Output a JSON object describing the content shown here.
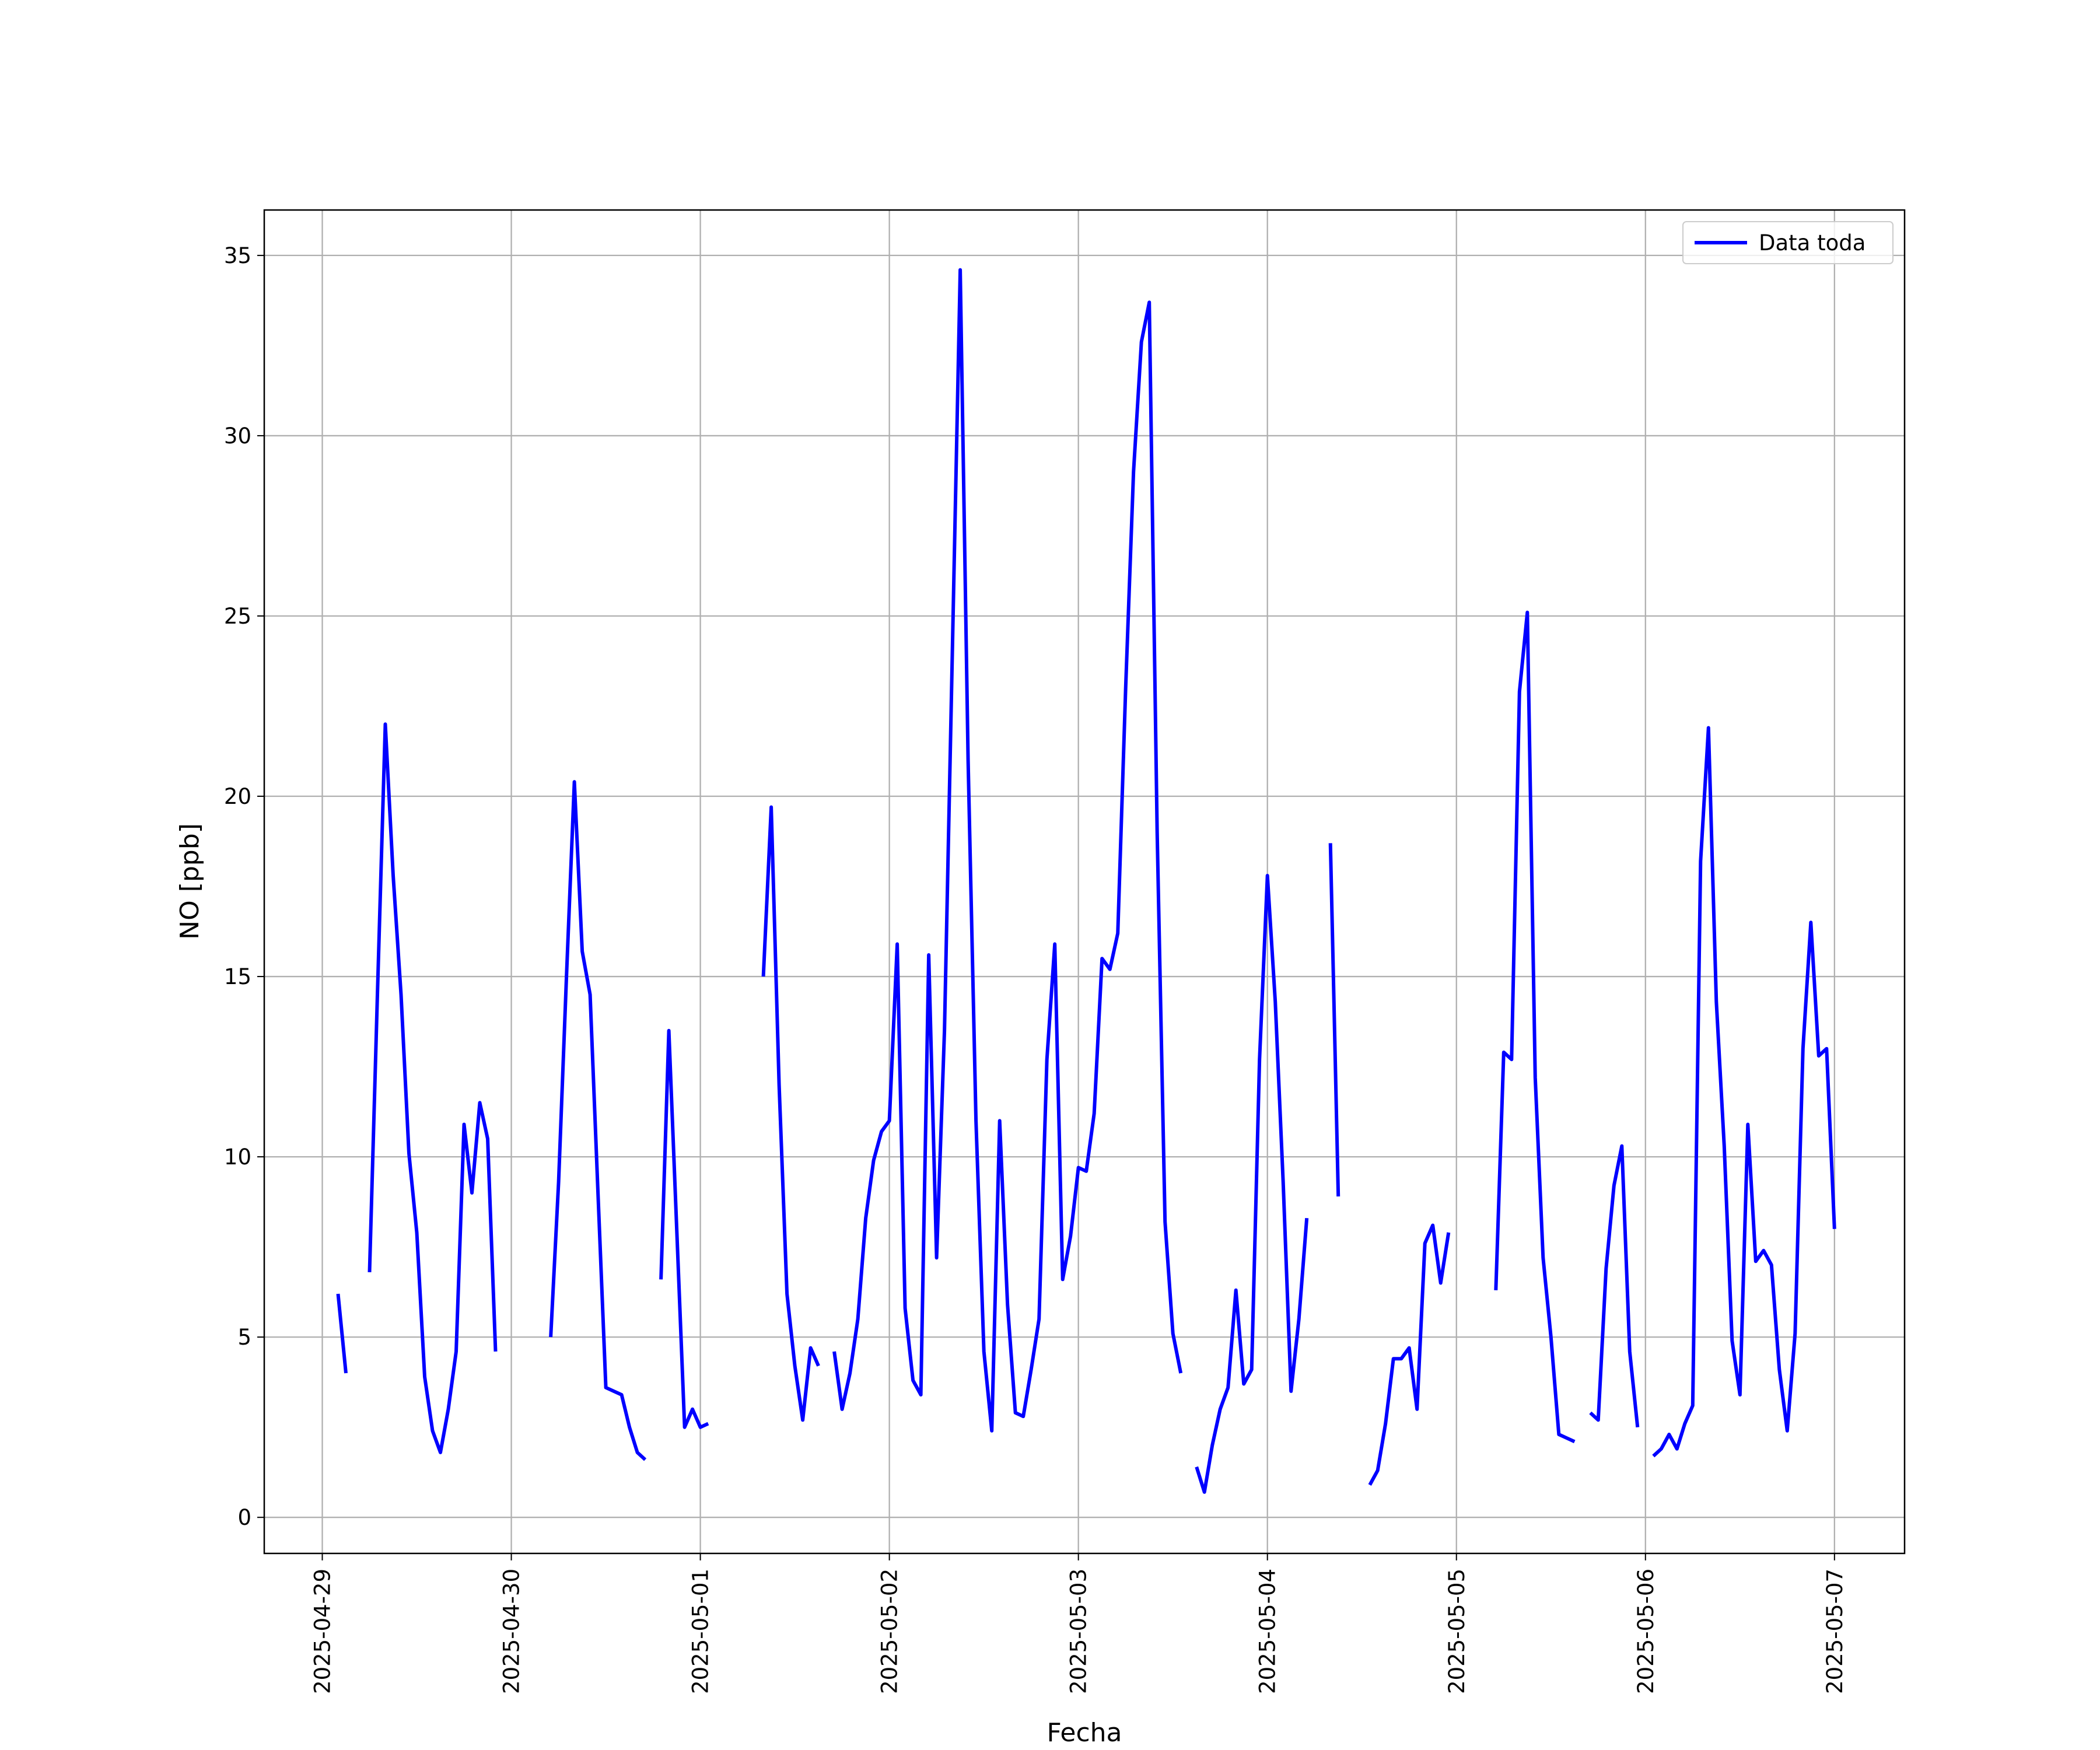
{
  "chart_data": {
    "type": "line",
    "x_label": "Fecha",
    "y_label": "NO [ppb]",
    "x": [
      2,
      3,
      4,
      5,
      6,
      7,
      8,
      9,
      10,
      11,
      12,
      13,
      14,
      15,
      16,
      17,
      18,
      19,
      20,
      21,
      22,
      23,
      24,
      25,
      26,
      27,
      28,
      29,
      30,
      31,
      32,
      33,
      34,
      35,
      36,
      37,
      38,
      39,
      40,
      41,
      42,
      43,
      44,
      45,
      46,
      47,
      48,
      49,
      50,
      51,
      52,
      53,
      54,
      55,
      56,
      57,
      58,
      59,
      60,
      61,
      62,
      63,
      64,
      65,
      66,
      67,
      68,
      69,
      70,
      71,
      72,
      73,
      74,
      75,
      76,
      77,
      78,
      79,
      80,
      81,
      82,
      83,
      84,
      85,
      86,
      87,
      88,
      89,
      90,
      91,
      92,
      93,
      94,
      95,
      96,
      97,
      98,
      99,
      100,
      101,
      102,
      103,
      104,
      105,
      106,
      107,
      108,
      109,
      110,
      111,
      112,
      113,
      114,
      115,
      116,
      117,
      118,
      119,
      120,
      121,
      122,
      123,
      124,
      125,
      126,
      127,
      128,
      129,
      130,
      131,
      132,
      133,
      134,
      135,
      136,
      137,
      138,
      139,
      140,
      141,
      142,
      143,
      144,
      145,
      146,
      147,
      148,
      149,
      150,
      151,
      152,
      153,
      154,
      155,
      156,
      157,
      158,
      159,
      160,
      161,
      162,
      163,
      164,
      165,
      166,
      167,
      168,
      169,
      170,
      171,
      172,
      173,
      174,
      175,
      176,
      177,
      178,
      179,
      180,
      181,
      182,
      183,
      184,
      185,
      186,
      187,
      188,
      189,
      190,
      191,
      192
    ],
    "series": [
      {
        "name": "Data toda",
        "color": "#0000ff",
        "values": [
          6.2,
          4.0,
          null,
          null,
          6.8,
          14.5,
          22,
          17.8,
          14.5,
          10.1,
          7.9,
          3.9,
          2.4,
          1.8,
          3.0,
          4.6,
          10.9,
          9.0,
          11.5,
          10.5,
          4.6,
          null,
          null,
          null,
          null,
          null,
          null,
          5.0,
          9.3,
          15,
          20.4,
          15.7,
          14.5,
          9,
          3.6,
          3.5,
          3.4,
          2.5,
          1.8,
          1.6,
          null,
          6.6,
          13.5,
          8,
          2.5,
          3.0,
          2.5,
          2.6,
          null,
          null,
          null,
          null,
          null,
          null,
          15,
          19.7,
          12,
          6.2,
          4.2,
          2.7,
          4.7,
          4.2,
          null,
          4.6,
          3.0,
          4.0,
          5.5,
          8.3,
          9.9,
          10.7,
          11.0,
          15.9,
          5.8,
          3.8,
          3.4,
          15.6,
          7.2,
          13.5,
          24,
          34.6,
          21,
          11,
          4.6,
          2.4,
          11,
          5.9,
          2.9,
          2.8,
          4.1,
          5.5,
          12.7,
          15.9,
          6.6,
          7.8,
          9.7,
          9.6,
          11.2,
          15.5,
          15.2,
          16.2,
          23,
          29,
          32.6,
          33.7,
          19,
          8.2,
          5.1,
          4.0,
          null,
          1.4,
          0.7,
          2.0,
          3.0,
          3.6,
          6.3,
          3.7,
          4.1,
          12.7,
          17.8,
          14.3,
          9.3,
          3.5,
          5.5,
          8.3,
          null,
          null,
          18.7,
          8.9,
          null,
          null,
          null,
          0.9,
          1.3,
          2.6,
          4.4,
          4.4,
          4.7,
          3.0,
          7.6,
          8.1,
          6.5,
          7.9,
          null,
          null,
          null,
          null,
          null,
          6.3,
          12.9,
          12.7,
          22.9,
          25.1,
          12.2,
          7.2,
          5.0,
          2.3,
          2.2,
          2.1,
          null,
          2.9,
          2.7,
          6.9,
          9.2,
          10.3,
          4.6,
          2.5,
          null,
          1.7,
          1.9,
          2.3,
          1.9,
          2.6,
          3.1,
          18.2,
          21.9,
          14.3,
          10.3,
          4.9,
          3.4,
          10.9,
          7.1,
          7.4,
          7.0,
          4.1,
          2.4,
          5.1,
          13,
          16.5,
          12.8,
          13.0,
          8.0
        ]
      }
    ],
    "xlim": [
      -7.37,
      200.9
    ],
    "xticks": [
      {
        "value": 0,
        "label": "2025-04-29"
      },
      {
        "value": 24,
        "label": "2025-04-30"
      },
      {
        "value": 48,
        "label": "2025-05-01"
      },
      {
        "value": 72,
        "label": "2025-05-02"
      },
      {
        "value": 96,
        "label": "2025-05-03"
      },
      {
        "value": 120,
        "label": "2025-05-04"
      },
      {
        "value": 144,
        "label": "2025-05-05"
      },
      {
        "value": 168,
        "label": "2025-05-06"
      },
      {
        "value": 192,
        "label": "2025-05-07"
      }
    ],
    "ylim": [
      -1.0,
      36.26
    ],
    "yticks": [
      0,
      5,
      10,
      15,
      20,
      25,
      30,
      35
    ],
    "grid": true,
    "legend": "upper right"
  }
}
